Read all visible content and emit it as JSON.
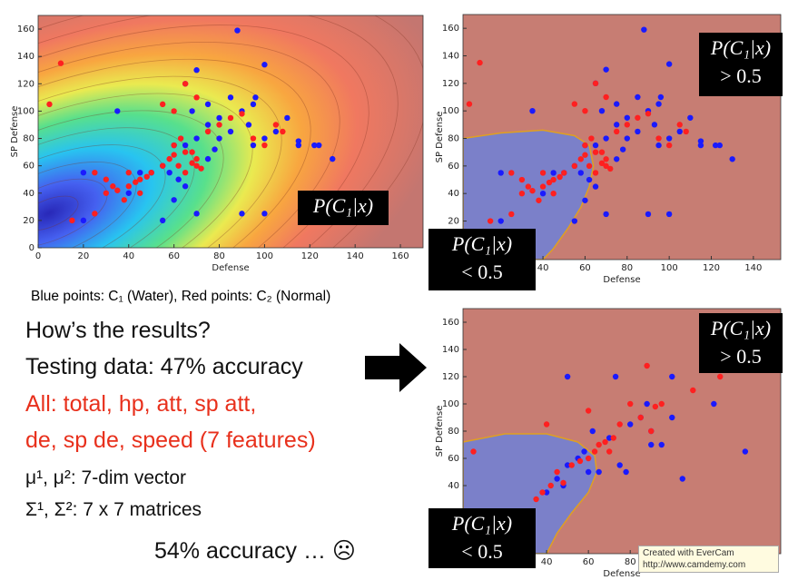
{
  "chart_data": [
    {
      "type": "scatter",
      "xlabel": "Defense",
      "ylabel": "SP Defense",
      "xlim": [
        0,
        170
      ],
      "ylim": [
        0,
        170
      ],
      "xticks": [
        0,
        20,
        40,
        60,
        80,
        100,
        120,
        140,
        160
      ],
      "yticks": [
        0,
        20,
        40,
        60,
        80,
        100,
        120,
        140,
        160
      ],
      "background": "gradient",
      "annotations": [
        {
          "lines": [
            "P(C₁|x)"
          ]
        }
      ],
      "series": [
        {
          "color": "#1a1aff",
          "x": [
            88,
            100,
            122,
            124,
            115,
            130,
            90,
            100,
            55,
            20,
            20,
            35,
            65,
            70,
            75,
            80,
            85,
            90,
            95,
            65,
            60,
            70,
            68,
            75,
            80,
            85,
            50,
            55,
            40,
            45,
            60,
            70,
            65,
            58,
            62,
            75,
            78,
            95,
            100,
            105,
            110,
            115,
            93,
            96
          ],
          "y": [
            159,
            134,
            75,
            75,
            78,
            65,
            25,
            25,
            20,
            20,
            55,
            100,
            120,
            130,
            105,
            95,
            110,
            100,
            105,
            75,
            75,
            80,
            100,
            90,
            80,
            85,
            55,
            60,
            40,
            55,
            35,
            25,
            45,
            55,
            50,
            65,
            72,
            75,
            80,
            85,
            95,
            75,
            90,
            110
          ]
        },
        {
          "color": "#ff2020",
          "x": [
            5,
            10,
            15,
            25,
            30,
            33,
            35,
            38,
            40,
            43,
            45,
            48,
            50,
            55,
            58,
            60,
            62,
            65,
            68,
            70,
            72,
            60,
            63,
            65,
            68,
            70,
            65,
            80,
            85,
            90,
            95,
            100,
            105,
            108,
            70,
            75,
            55,
            40,
            30,
            45,
            25,
            60
          ],
          "y": [
            105,
            135,
            20,
            25,
            40,
            45,
            42,
            35,
            45,
            48,
            50,
            52,
            55,
            60,
            65,
            68,
            60,
            55,
            62,
            65,
            58,
            75,
            80,
            70,
            70,
            110,
            120,
            90,
            95,
            98,
            80,
            75,
            90,
            85,
            60,
            85,
            105,
            55,
            50,
            40,
            55,
            100
          ]
        }
      ]
    },
    {
      "type": "scatter",
      "xlabel": "Defense",
      "ylabel": "SP Defense",
      "xlim": [
        2,
        153
      ],
      "ylim": [
        -8,
        170
      ],
      "xticks": [
        40,
        60,
        80,
        100,
        120,
        140
      ],
      "yticks": [
        20,
        40,
        60,
        80,
        100,
        120,
        140,
        160
      ],
      "background": "boundary",
      "annotations": [
        {
          "lines": [
            "P(C₁|x)",
            "> 0.5"
          ]
        },
        {
          "lines": [
            "P(C₁|x)",
            "< 0.5"
          ]
        }
      ],
      "series": [
        {
          "color": "#1a1aff",
          "x": [
            88,
            100,
            122,
            124,
            115,
            130,
            90,
            100,
            55,
            20,
            20,
            35,
            65,
            70,
            75,
            80,
            85,
            90,
            95,
            65,
            60,
            70,
            68,
            75,
            80,
            85,
            50,
            55,
            40,
            45,
            60,
            70,
            65,
            58,
            62,
            75,
            78,
            95,
            100,
            105,
            110,
            115,
            93,
            96
          ],
          "y": [
            159,
            134,
            75,
            75,
            78,
            65,
            25,
            25,
            20,
            20,
            55,
            100,
            120,
            130,
            105,
            95,
            110,
            100,
            105,
            75,
            75,
            80,
            100,
            90,
            80,
            85,
            55,
            60,
            40,
            55,
            35,
            25,
            45,
            55,
            50,
            65,
            72,
            75,
            80,
            85,
            95,
            75,
            90,
            110
          ]
        },
        {
          "color": "#ff2020",
          "x": [
            5,
            10,
            15,
            25,
            30,
            33,
            35,
            38,
            40,
            43,
            45,
            48,
            50,
            55,
            58,
            60,
            62,
            65,
            68,
            70,
            72,
            60,
            63,
            65,
            68,
            70,
            65,
            80,
            85,
            90,
            95,
            100,
            105,
            108,
            70,
            75,
            55,
            40,
            30,
            45,
            25,
            60
          ],
          "y": [
            105,
            135,
            20,
            25,
            40,
            45,
            42,
            35,
            45,
            48,
            50,
            52,
            55,
            60,
            65,
            68,
            60,
            55,
            62,
            65,
            58,
            75,
            80,
            70,
            70,
            110,
            120,
            90,
            95,
            98,
            80,
            75,
            90,
            85,
            60,
            85,
            105,
            55,
            50,
            40,
            55,
            100
          ]
        }
      ]
    },
    {
      "type": "scatter",
      "xlabel": "Defense",
      "ylabel": "SP Defense",
      "xlim": [
        0,
        152
      ],
      "ylim": [
        -10,
        170
      ],
      "xticks": [
        40,
        60,
        80
      ],
      "yticks": [
        40,
        60,
        80,
        100,
        120,
        140,
        160
      ],
      "background": "boundary",
      "annotations": [
        {
          "lines": [
            "P(C₁|x)",
            "> 0.5"
          ]
        },
        {
          "lines": [
            "P(C₁|x)",
            "< 0.5"
          ]
        }
      ],
      "series": [
        {
          "color": "#1a1aff",
          "x": [
            50,
            73,
            100,
            120,
            135,
            100,
            90,
            80,
            85,
            75,
            60,
            45,
            50,
            55,
            40,
            48,
            65,
            70,
            62,
            88,
            105,
            78,
            90,
            95,
            58
          ],
          "y": [
            120,
            120,
            120,
            100,
            65,
            90,
            80,
            85,
            90,
            55,
            50,
            45,
            55,
            60,
            35,
            40,
            50,
            75,
            80,
            100,
            45,
            50,
            70,
            70,
            65
          ]
        },
        {
          "color": "#ff2020",
          "x": [
            5,
            40,
            35,
            38,
            42,
            45,
            48,
            52,
            56,
            60,
            63,
            65,
            68,
            72,
            80,
            88,
            85,
            95,
            110,
            123,
            60,
            75,
            90,
            92,
            70
          ],
          "y": [
            65,
            85,
            30,
            35,
            40,
            50,
            42,
            55,
            58,
            60,
            65,
            70,
            72,
            75,
            100,
            128,
            90,
            100,
            110,
            120,
            95,
            85,
            80,
            98,
            65
          ]
        }
      ]
    }
  ],
  "slide": {
    "caption": "Blue points: C₁ (Water), Red points: C₂ (Normal)",
    "lines": [
      "How’s the results?",
      "Testing data: 47% accuracy",
      "All: total, hp, att, sp att,",
      "de, sp de, speed (7 features)",
      "μ¹, μ²: 7-dim vector",
      "Σ¹, Σ²: 7 x 7 matrices",
      "54% accuracy … ☹"
    ],
    "watermark": [
      "Created with EverCam",
      "http://www.camdemy.com"
    ]
  }
}
